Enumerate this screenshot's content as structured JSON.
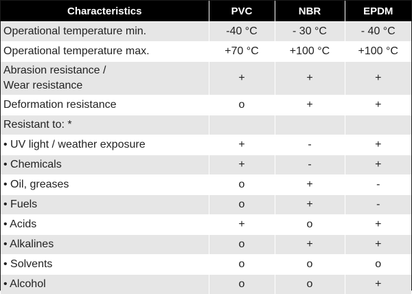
{
  "header": {
    "characteristics": "Characteristics",
    "pvc": "PVC",
    "nbr": "NBR",
    "epdm": "EPDM"
  },
  "rows": [
    {
      "label": "Operational temperature min.",
      "pvc": "-40 °C",
      "nbr": "-  30 °C",
      "epdm": "-  40 °C"
    },
    {
      "label": "Operational temperature max.",
      "pvc": "+70 °C",
      "nbr": "+100 °C",
      "epdm": "+100 °C"
    },
    {
      "label_line1": "Abrasion resistance /",
      "label_line2": "Wear resistance",
      "pvc": "+",
      "nbr": "+",
      "epdm": "+"
    },
    {
      "label": "Deformation resistance",
      "pvc": "o",
      "nbr": "+",
      "epdm": "+"
    },
    {
      "label": "Resistant to: *",
      "pvc": "",
      "nbr": "",
      "epdm": ""
    },
    {
      "label": "• UV light / weather exposure",
      "pvc": "+",
      "nbr": "-",
      "epdm": "+"
    },
    {
      "label": "• Chemicals",
      "pvc": "+",
      "nbr": "-",
      "epdm": "+"
    },
    {
      "label": "• Oil, greases",
      "pvc": "o",
      "nbr": "+",
      "epdm": "-"
    },
    {
      "label": "• Fuels",
      "pvc": "o",
      "nbr": "+",
      "epdm": "-"
    },
    {
      "label": "• Acids",
      "pvc": "+",
      "nbr": "o",
      "epdm": "+"
    },
    {
      "label": "• Alkalines",
      "pvc": "o",
      "nbr": "+",
      "epdm": "+"
    },
    {
      "label": "• Solvents",
      "pvc": "o",
      "nbr": "o",
      "epdm": "o"
    },
    {
      "label": "• Alcohol",
      "pvc": "o",
      "nbr": "o",
      "epdm": "+"
    }
  ]
}
